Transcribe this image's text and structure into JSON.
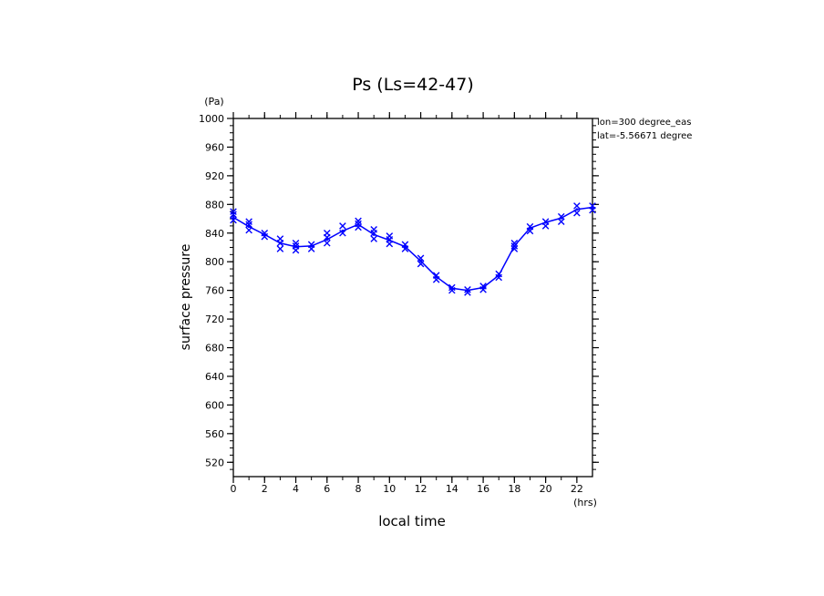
{
  "chart_data": {
    "type": "line",
    "title": "Ps (Ls=42-47)",
    "xlabel": "local time",
    "ylabel": "surface pressure",
    "x_unit": "(hrs)",
    "y_unit": "(Pa)",
    "xlim": [
      0,
      23
    ],
    "ylim": [
      500,
      1000
    ],
    "xticks": [
      0,
      2,
      4,
      6,
      8,
      10,
      12,
      14,
      16,
      18,
      20,
      22
    ],
    "yticks": [
      520,
      560,
      600,
      640,
      680,
      720,
      760,
      800,
      840,
      880,
      920,
      960,
      1000
    ],
    "annotations": [
      "lon=300 degree_eas",
      "lat=-5.56671 degree"
    ],
    "grid": false,
    "color": "#0000ff",
    "series": [
      {
        "x": [
          0,
          1,
          2,
          3,
          4,
          5,
          6,
          7,
          8,
          9,
          10,
          11,
          12,
          13,
          14,
          15,
          16,
          17,
          18,
          19,
          20,
          21,
          22,
          23
        ],
        "values": [
          862,
          849,
          838,
          826,
          821,
          822,
          831,
          843,
          852,
          838,
          830,
          821,
          801,
          779,
          763,
          760,
          764,
          781,
          822,
          847,
          855,
          861,
          873,
          876
        ]
      }
    ],
    "scatter": {
      "x": [
        0,
        0,
        0,
        1,
        1,
        1,
        2,
        2,
        3,
        3,
        3,
        4,
        4,
        4,
        5,
        5,
        6,
        6,
        6,
        7,
        7,
        8,
        8,
        8,
        9,
        9,
        9,
        10,
        10,
        10,
        11,
        11,
        12,
        12,
        13,
        13,
        14,
        14,
        15,
        15,
        16,
        16,
        17,
        17,
        18,
        18,
        18,
        19,
        19,
        20,
        20,
        21,
        21,
        22,
        22,
        23,
        23
      ],
      "values": [
        858,
        866,
        870,
        844,
        852,
        856,
        835,
        840,
        818,
        826,
        832,
        816,
        822,
        826,
        818,
        824,
        826,
        834,
        840,
        840,
        850,
        848,
        853,
        857,
        832,
        840,
        845,
        825,
        831,
        836,
        818,
        824,
        797,
        805,
        775,
        781,
        760,
        764,
        757,
        761,
        761,
        766,
        778,
        783,
        818,
        822,
        826,
        843,
        849,
        850,
        856,
        856,
        863,
        868,
        878,
        872,
        878
      ]
    }
  }
}
